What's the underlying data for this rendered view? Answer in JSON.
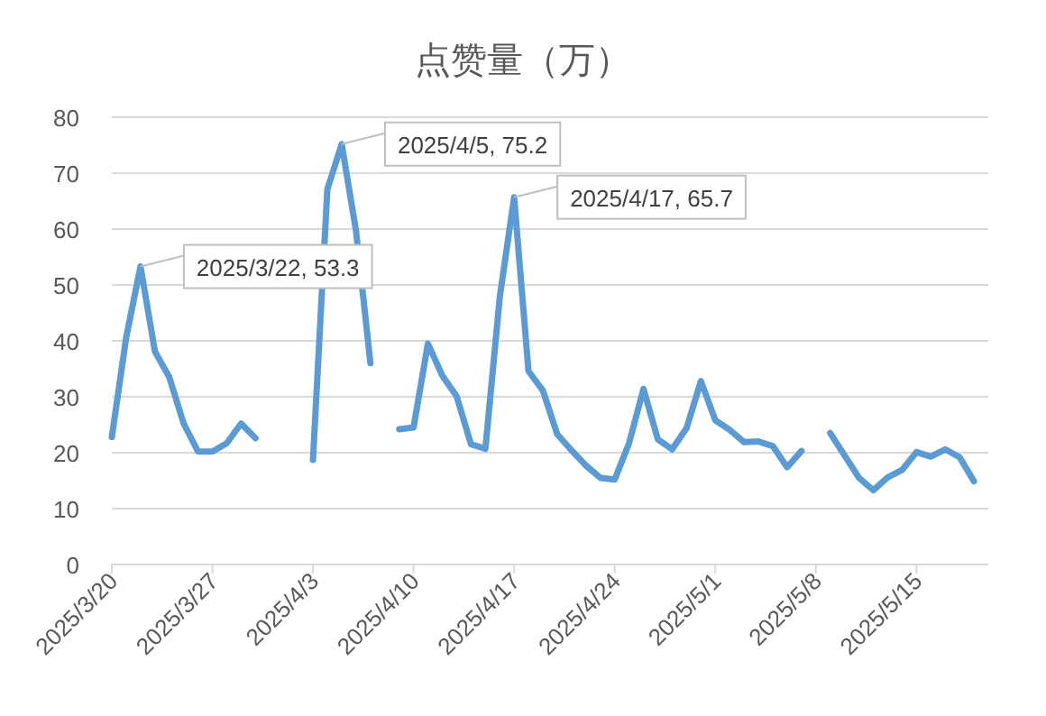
{
  "chart_data": {
    "type": "line",
    "title": "点赞量（万）",
    "x": [
      "2025-03-20",
      "2025-03-21",
      "2025-03-22",
      "2025-03-23",
      "2025-03-24",
      "2025-03-25",
      "2025-03-26",
      "2025-03-27",
      "2025-03-28",
      "2025-03-29",
      "2025-03-30",
      "2025-03-31",
      "2025-04-01",
      "2025-04-02",
      "2025-04-03",
      "2025-04-04",
      "2025-04-05",
      "2025-04-06",
      "2025-04-07",
      "2025-04-08",
      "2025-04-09",
      "2025-04-10",
      "2025-04-11",
      "2025-04-12",
      "2025-04-13",
      "2025-04-14",
      "2025-04-15",
      "2025-04-16",
      "2025-04-17",
      "2025-04-18",
      "2025-04-19",
      "2025-04-20",
      "2025-04-21",
      "2025-04-22",
      "2025-04-23",
      "2025-04-24",
      "2025-04-25",
      "2025-04-26",
      "2025-04-27",
      "2025-04-28",
      "2025-04-29",
      "2025-04-30",
      "2025-05-01",
      "2025-05-02",
      "2025-05-03",
      "2025-05-04",
      "2025-05-05",
      "2025-05-06",
      "2025-05-07",
      "2025-05-08",
      "2025-05-09",
      "2025-05-10",
      "2025-05-11",
      "2025-05-12",
      "2025-05-13",
      "2025-05-14",
      "2025-05-15",
      "2025-05-16",
      "2025-05-17",
      "2025-05-18",
      "2025-05-19"
    ],
    "series": [
      {
        "color": "#5b9bd5",
        "values": [
          22.8,
          40.6,
          53.3,
          38.1,
          33.5,
          25.2,
          20.2,
          20.2,
          21.7,
          25.2,
          22.6,
          null,
          null,
          null,
          18.7,
          67.1,
          75.2,
          59.6,
          36.0,
          null,
          24.2,
          24.5,
          39.5,
          33.8,
          30.1,
          21.5,
          20.7,
          47.8,
          65.7,
          34.6,
          31.1,
          23.3,
          20.4,
          17.7,
          15.5,
          15.2,
          21.7,
          31.4,
          22.4,
          20.6,
          24.4,
          32.8,
          25.8,
          24.1,
          21.9,
          22.0,
          21.2,
          17.4,
          20.3,
          null,
          23.5,
          19.5,
          15.5,
          13.3,
          15.6,
          16.9,
          20.1,
          19.3,
          20.6,
          19.2,
          14.9
        ]
      }
    ],
    "annotations": [
      {
        "text": "2025/3/22, 53.3",
        "x": "2025-03-22",
        "y": 53.3
      },
      {
        "text": "2025/4/5, 75.2",
        "x": "2025-04-05",
        "y": 75.2
      },
      {
        "text": "2025/4/17, 65.7",
        "x": "2025-04-17",
        "y": 65.7
      }
    ],
    "xlim": [
      "2025-03-20",
      "2025-05-20"
    ],
    "xticks": [
      {
        "value": "2025-03-20",
        "label": "2025/3/20"
      },
      {
        "value": "2025-03-27",
        "label": "2025/3/27"
      },
      {
        "value": "2025-04-03",
        "label": "2025/4/3"
      },
      {
        "value": "2025-04-10",
        "label": "2025/4/10"
      },
      {
        "value": "2025-04-17",
        "label": "2025/4/17"
      },
      {
        "value": "2025-04-24",
        "label": "2025/4/24"
      },
      {
        "value": "2025-05-01",
        "label": "2025/5/1"
      },
      {
        "value": "2025-05-08",
        "label": "2025/5/8"
      },
      {
        "value": "2025-05-15",
        "label": "2025/5/15"
      }
    ],
    "ylim": [
      0,
      80
    ],
    "yticks": [
      0,
      10,
      20,
      30,
      40,
      50,
      60,
      70,
      80
    ],
    "grid": "y",
    "marker": "none",
    "line_style": "solid"
  }
}
